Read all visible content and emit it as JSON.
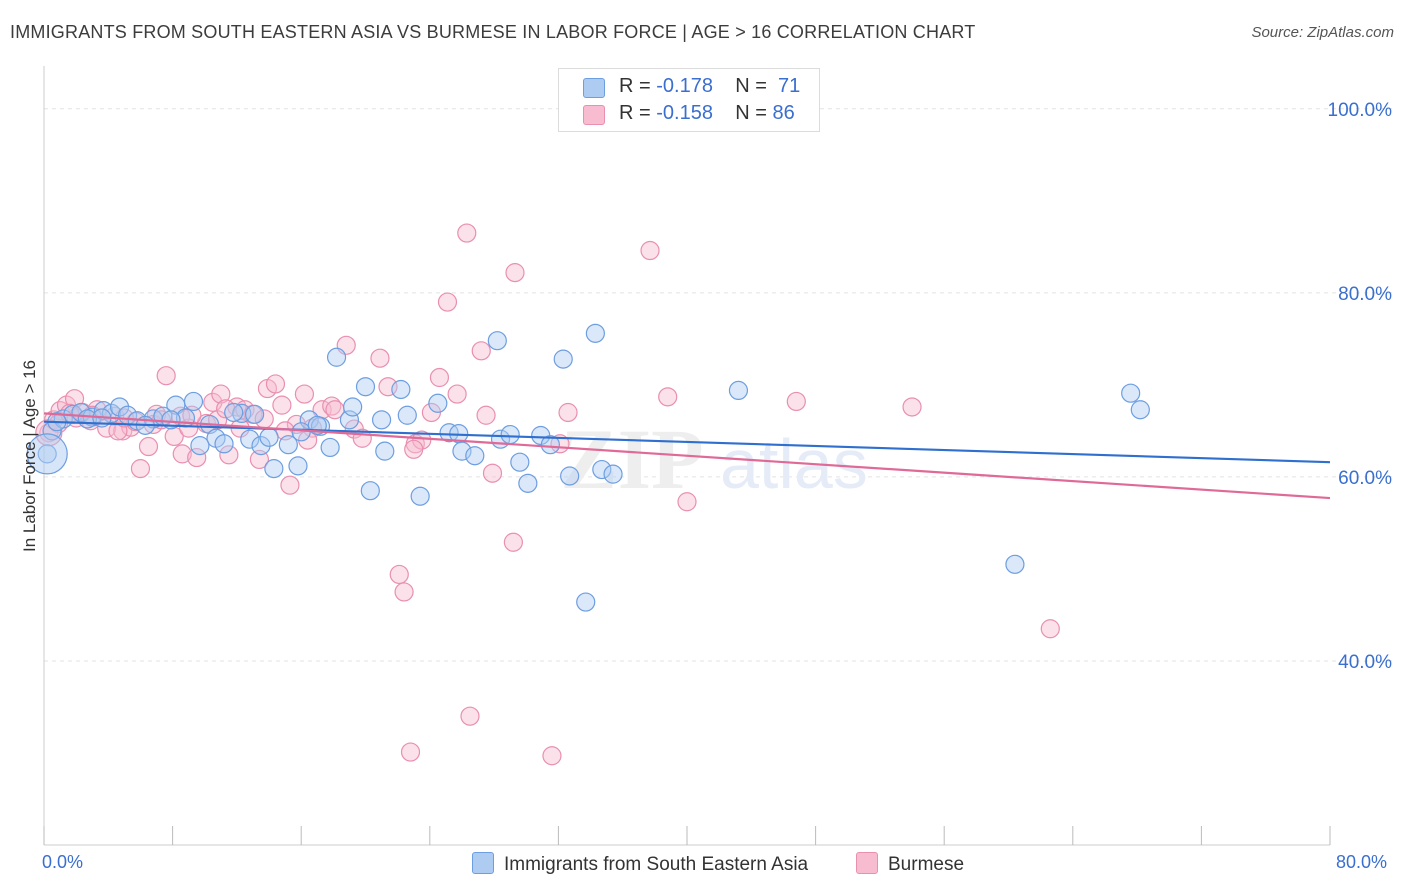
{
  "title": "IMMIGRANTS FROM SOUTH EASTERN ASIA VS BURMESE IN LABOR FORCE | AGE > 16 CORRELATION CHART",
  "source": "Source: ZipAtlas.com",
  "watermark": {
    "zip": "ZIP",
    "atlas": "atlas"
  },
  "legend": {
    "rows": [
      {
        "r_label": "R = ",
        "r_value": "-0.178",
        "n_label": "N = ",
        "n_value": "71"
      },
      {
        "r_label": "R = ",
        "r_value": "-0.158",
        "n_label": "N = ",
        "n_value": "86"
      }
    ]
  },
  "bottom_legend": [
    "Immigrants from South Eastern Asia",
    "Burmese"
  ],
  "colors": {
    "series1_fill": "#aecbf2",
    "series1_stroke": "#6d9ee0",
    "series1_line": "#2f6fce",
    "series2_fill": "#f7bcd0",
    "series2_stroke": "#e98fb0",
    "series2_line": "#e06a97",
    "grid": "#e3e3e3",
    "axis_label": "#3a6fcf"
  },
  "chart_data": {
    "type": "scatter",
    "title": "IMMIGRANTS FROM SOUTH EASTERN ASIA VS BURMESE IN LABOR FORCE | AGE > 16 CORRELATION CHART",
    "xlabel": "",
    "ylabel": "In Labor Force | Age > 16",
    "xlim": [
      0,
      80
    ],
    "ylim": [
      20,
      104
    ],
    "x_tick_labels": [
      "0.0%",
      "80.0%"
    ],
    "y_ticks": [
      40,
      60,
      80,
      100
    ],
    "y_tick_labels": [
      "40.0%",
      "60.0%",
      "80.0%",
      "100.0%"
    ],
    "grid": true,
    "legend_position": "top-center",
    "series": [
      {
        "name": "Immigrants from South Eastern Asia",
        "R": -0.178,
        "N": 71,
        "trend": {
          "x": [
            0,
            80
          ],
          "y": [
            66.0,
            61.6
          ]
        },
        "points": [
          {
            "x": 0.2,
            "y": 62.5
          },
          {
            "x": 0.5,
            "y": 65.0
          },
          {
            "x": 1.2,
            "y": 66.3
          },
          {
            "x": 1.8,
            "y": 66.8
          },
          {
            "x": 2.3,
            "y": 67.0
          },
          {
            "x": 3.0,
            "y": 66.5
          },
          {
            "x": 3.7,
            "y": 67.2
          },
          {
            "x": 4.2,
            "y": 66.9
          },
          {
            "x": 4.7,
            "y": 67.6
          },
          {
            "x": 5.2,
            "y": 66.7
          },
          {
            "x": 5.8,
            "y": 66.1
          },
          {
            "x": 6.8,
            "y": 66.3
          },
          {
            "x": 8.2,
            "y": 67.8
          },
          {
            "x": 8.8,
            "y": 66.4
          },
          {
            "x": 9.3,
            "y": 68.2
          },
          {
            "x": 10.3,
            "y": 65.7
          },
          {
            "x": 10.7,
            "y": 64.2
          },
          {
            "x": 11.2,
            "y": 63.6
          },
          {
            "x": 12.3,
            "y": 66.9
          },
          {
            "x": 12.8,
            "y": 64.1
          },
          {
            "x": 13.5,
            "y": 63.4
          },
          {
            "x": 14.3,
            "y": 60.9
          },
          {
            "x": 15.2,
            "y": 63.5
          },
          {
            "x": 15.8,
            "y": 61.2
          },
          {
            "x": 16.5,
            "y": 66.2
          },
          {
            "x": 17.2,
            "y": 65.5
          },
          {
            "x": 17.8,
            "y": 63.2
          },
          {
            "x": 18.2,
            "y": 73.0
          },
          {
            "x": 19.0,
            "y": 66.2
          },
          {
            "x": 19.2,
            "y": 67.6
          },
          {
            "x": 20.0,
            "y": 69.8
          },
          {
            "x": 20.3,
            "y": 58.5
          },
          {
            "x": 21.0,
            "y": 66.2
          },
          {
            "x": 21.2,
            "y": 62.8
          },
          {
            "x": 22.2,
            "y": 69.5
          },
          {
            "x": 22.6,
            "y": 66.7
          },
          {
            "x": 23.4,
            "y": 57.9
          },
          {
            "x": 24.5,
            "y": 68.0
          },
          {
            "x": 25.2,
            "y": 64.8
          },
          {
            "x": 26.0,
            "y": 62.8
          },
          {
            "x": 26.8,
            "y": 62.3
          },
          {
            "x": 28.2,
            "y": 74.8
          },
          {
            "x": 28.4,
            "y": 64.1
          },
          {
            "x": 29.6,
            "y": 61.6
          },
          {
            "x": 30.1,
            "y": 59.3
          },
          {
            "x": 30.9,
            "y": 64.5
          },
          {
            "x": 31.5,
            "y": 63.5
          },
          {
            "x": 32.3,
            "y": 72.8
          },
          {
            "x": 32.7,
            "y": 60.1
          },
          {
            "x": 33.7,
            "y": 46.4
          },
          {
            "x": 34.3,
            "y": 75.6
          },
          {
            "x": 34.7,
            "y": 60.8
          },
          {
            "x": 35.4,
            "y": 60.3
          },
          {
            "x": 43.2,
            "y": 69.4
          },
          {
            "x": 60.4,
            "y": 50.5
          },
          {
            "x": 67.6,
            "y": 69.1
          },
          {
            "x": 68.2,
            "y": 67.3
          },
          {
            "x": 0.8,
            "y": 66.0
          },
          {
            "x": 2.7,
            "y": 66.3
          },
          {
            "x": 6.3,
            "y": 65.6
          },
          {
            "x": 7.4,
            "y": 66.6
          },
          {
            "x": 9.7,
            "y": 63.4
          },
          {
            "x": 11.8,
            "y": 67.0
          },
          {
            "x": 14.0,
            "y": 64.3
          },
          {
            "x": 16.0,
            "y": 64.9
          },
          {
            "x": 17.0,
            "y": 65.6
          },
          {
            "x": 25.8,
            "y": 64.7
          },
          {
            "x": 29.0,
            "y": 64.6
          },
          {
            "x": 7.9,
            "y": 66.2
          },
          {
            "x": 13.1,
            "y": 66.8
          },
          {
            "x": 3.6,
            "y": 66.4
          }
        ]
      },
      {
        "name": "Burmese",
        "R": -0.158,
        "N": 86,
        "trend": {
          "x": [
            0,
            80
          ],
          "y": [
            66.9,
            57.7
          ]
        },
        "points": [
          {
            "x": 0.3,
            "y": 64.8
          },
          {
            "x": 0.6,
            "y": 66.2
          },
          {
            "x": 1.0,
            "y": 67.2
          },
          {
            "x": 1.4,
            "y": 67.8
          },
          {
            "x": 1.9,
            "y": 68.5
          },
          {
            "x": 2.4,
            "y": 67.0
          },
          {
            "x": 2.9,
            "y": 66.1
          },
          {
            "x": 3.3,
            "y": 67.3
          },
          {
            "x": 3.9,
            "y": 65.3
          },
          {
            "x": 4.4,
            "y": 66.6
          },
          {
            "x": 4.9,
            "y": 65.0
          },
          {
            "x": 5.4,
            "y": 65.4
          },
          {
            "x": 6.0,
            "y": 60.9
          },
          {
            "x": 6.5,
            "y": 63.3
          },
          {
            "x": 7.0,
            "y": 66.8
          },
          {
            "x": 7.6,
            "y": 71.0
          },
          {
            "x": 8.1,
            "y": 64.4
          },
          {
            "x": 8.6,
            "y": 62.5
          },
          {
            "x": 9.0,
            "y": 65.3
          },
          {
            "x": 9.5,
            "y": 62.1
          },
          {
            "x": 10.1,
            "y": 65.8
          },
          {
            "x": 10.5,
            "y": 68.1
          },
          {
            "x": 11.0,
            "y": 69.0
          },
          {
            "x": 11.5,
            "y": 62.4
          },
          {
            "x": 12.0,
            "y": 67.6
          },
          {
            "x": 12.5,
            "y": 67.3
          },
          {
            "x": 13.0,
            "y": 66.8
          },
          {
            "x": 13.4,
            "y": 61.9
          },
          {
            "x": 13.9,
            "y": 69.6
          },
          {
            "x": 14.4,
            "y": 70.1
          },
          {
            "x": 14.8,
            "y": 67.8
          },
          {
            "x": 15.3,
            "y": 59.1
          },
          {
            "x": 15.7,
            "y": 65.7
          },
          {
            "x": 16.2,
            "y": 69.0
          },
          {
            "x": 16.7,
            "y": 65.3
          },
          {
            "x": 17.3,
            "y": 67.3
          },
          {
            "x": 17.9,
            "y": 67.7
          },
          {
            "x": 18.8,
            "y": 74.3
          },
          {
            "x": 19.3,
            "y": 65.2
          },
          {
            "x": 19.8,
            "y": 64.2
          },
          {
            "x": 20.9,
            "y": 72.9
          },
          {
            "x": 21.4,
            "y": 69.8
          },
          {
            "x": 22.1,
            "y": 49.4
          },
          {
            "x": 22.4,
            "y": 47.5
          },
          {
            "x": 22.8,
            "y": 30.1
          },
          {
            "x": 23.1,
            "y": 63.6
          },
          {
            "x": 23.5,
            "y": 64.0
          },
          {
            "x": 24.1,
            "y": 67.0
          },
          {
            "x": 24.6,
            "y": 70.8
          },
          {
            "x": 25.1,
            "y": 79.0
          },
          {
            "x": 25.7,
            "y": 69.0
          },
          {
            "x": 26.3,
            "y": 86.5
          },
          {
            "x": 26.5,
            "y": 34.0
          },
          {
            "x": 27.2,
            "y": 73.7
          },
          {
            "x": 27.5,
            "y": 66.7
          },
          {
            "x": 27.9,
            "y": 60.4
          },
          {
            "x": 29.2,
            "y": 52.9
          },
          {
            "x": 29.3,
            "y": 82.2
          },
          {
            "x": 31.6,
            "y": 29.7
          },
          {
            "x": 32.1,
            "y": 63.6
          },
          {
            "x": 32.6,
            "y": 67.0
          },
          {
            "x": 37.7,
            "y": 84.6
          },
          {
            "x": 38.8,
            "y": 68.7
          },
          {
            "x": 40.0,
            "y": 57.3
          },
          {
            "x": 46.8,
            "y": 68.2
          },
          {
            "x": 54.0,
            "y": 67.6
          },
          {
            "x": 62.6,
            "y": 43.5
          },
          {
            "x": 2.0,
            "y": 66.4
          },
          {
            "x": 3.0,
            "y": 66.7
          },
          {
            "x": 4.6,
            "y": 65.0
          },
          {
            "x": 5.7,
            "y": 66.0
          },
          {
            "x": 6.8,
            "y": 65.7
          },
          {
            "x": 8.5,
            "y": 66.6
          },
          {
            "x": 9.2,
            "y": 66.7
          },
          {
            "x": 10.8,
            "y": 66.2
          },
          {
            "x": 11.3,
            "y": 67.4
          },
          {
            "x": 12.2,
            "y": 65.3
          },
          {
            "x": 13.7,
            "y": 66.3
          },
          {
            "x": 15.0,
            "y": 65.0
          },
          {
            "x": 16.4,
            "y": 64.0
          },
          {
            "x": 18.1,
            "y": 67.3
          },
          {
            "x": 23.0,
            "y": 63.0
          },
          {
            "x": 5.0,
            "y": 66.4
          },
          {
            "x": 7.3,
            "y": 66.2
          },
          {
            "x": 0.9,
            "y": 65.8
          },
          {
            "x": 1.6,
            "y": 66.9
          }
        ]
      }
    ]
  }
}
